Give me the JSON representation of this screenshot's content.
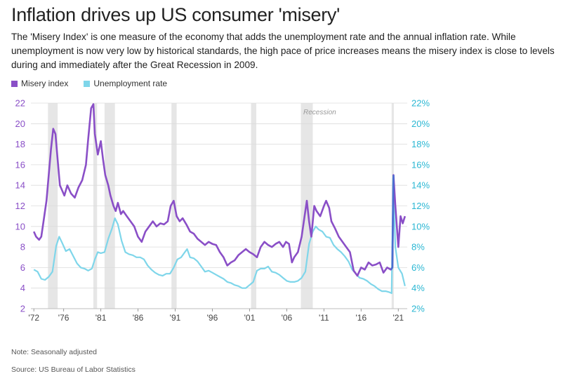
{
  "title": "Inflation drives up US consumer 'misery'",
  "subtitle": "The 'Misery Index' is one measure of the economy that adds the unemployment rate and the annual inflation rate. While unemployment is now very low by historical standards, the high pace of price increases means the misery index is close to levels during and immediately after the Great Recession in 2009.",
  "legend": {
    "misery_label": "Misery index",
    "unemployment_label": "Unemployment rate"
  },
  "note": "Note: Seasonally adjusted",
  "source": "Source: US Bureau of Labor Statistics",
  "colors": {
    "misery": "#8a4fc7",
    "unemployment": "#7fd6ea",
    "recession": "#e6e6e6",
    "grid": "#dcdcdc",
    "left_axis": "#8a4fc7",
    "right_axis": "#2bb7d3",
    "covid_spike": "#4a6fd0"
  },
  "chart_data": {
    "type": "line",
    "title": "Inflation drives up US consumer 'misery'",
    "xlabel": "",
    "ylabel": "",
    "xlim": [
      1971.6,
      2022.2
    ],
    "ylim_left": [
      2,
      22
    ],
    "ylim_right": [
      2,
      22
    ],
    "x_tick_labels": [
      "'72",
      "'76",
      "'81",
      "'86",
      "'91",
      "'96",
      "'01",
      "'06",
      "'11",
      "'16",
      "'21"
    ],
    "x_tick_years": [
      1972,
      1976,
      1981,
      1986,
      1991,
      1996,
      2001,
      2006,
      2011,
      2016,
      2021
    ],
    "y_ticks_left": [
      2,
      4,
      6,
      8,
      10,
      12,
      14,
      16,
      18,
      20,
      22
    ],
    "y_ticks_right_labels": [
      "2%",
      "4%",
      "6%",
      "8%",
      "10%",
      "12%",
      "14%",
      "16%",
      "18%",
      "20%",
      "22%"
    ],
    "y_ticks_right": [
      2,
      4,
      6,
      8,
      10,
      12,
      14,
      16,
      18,
      20,
      22
    ],
    "grid": true,
    "legend_position": "top-left",
    "recession_label": "Recession",
    "recessions": [
      [
        1973.9,
        1975.2
      ],
      [
        1980.0,
        1980.5
      ],
      [
        1981.5,
        1982.9
      ],
      [
        1990.5,
        1991.2
      ],
      [
        2001.2,
        2001.9
      ],
      [
        2007.9,
        2009.5
      ],
      [
        2020.1,
        2020.4
      ]
    ],
    "series": [
      {
        "name": "Misery index",
        "axis": "left",
        "x": [
          1972.0,
          1972.3,
          1972.7,
          1973.0,
          1973.3,
          1973.7,
          1974.0,
          1974.3,
          1974.6,
          1974.9,
          1975.2,
          1975.5,
          1975.8,
          1976.1,
          1976.5,
          1977.0,
          1977.5,
          1978.0,
          1978.5,
          1979.0,
          1979.3,
          1979.7,
          1980.0,
          1980.2,
          1980.6,
          1981.0,
          1981.3,
          1981.6,
          1982.0,
          1982.3,
          1982.7,
          1983.0,
          1983.3,
          1983.7,
          1984.0,
          1984.5,
          1985.0,
          1985.5,
          1986.0,
          1986.5,
          1987.0,
          1987.5,
          1988.0,
          1988.5,
          1989.0,
          1989.5,
          1990.0,
          1990.4,
          1990.8,
          1991.2,
          1991.6,
          1992.0,
          1992.5,
          1993.0,
          1993.5,
          1994.0,
          1994.5,
          1995.0,
          1995.5,
          1996.0,
          1996.5,
          1997.0,
          1997.5,
          1998.0,
          1998.5,
          1999.0,
          1999.5,
          2000.0,
          2000.5,
          2001.0,
          2001.5,
          2002.0,
          2002.5,
          2003.0,
          2003.5,
          2004.0,
          2004.5,
          2005.0,
          2005.5,
          2005.9,
          2006.3,
          2006.7,
          2007.0,
          2007.5,
          2008.0,
          2008.4,
          2008.7,
          2009.0,
          2009.3,
          2009.7,
          2010.0,
          2010.5,
          2011.0,
          2011.3,
          2011.7,
          2012.0,
          2012.5,
          2013.0,
          2013.5,
          2014.0,
          2014.5,
          2015.0,
          2015.5,
          2016.0,
          2016.5,
          2017.0,
          2017.5,
          2018.0,
          2018.5,
          2019.0,
          2019.5,
          2020.0,
          2020.2,
          2020.35,
          2020.6,
          2021.0,
          2021.3,
          2021.6,
          2021.9
        ],
        "values": [
          9.5,
          9.0,
          8.7,
          9.0,
          10.5,
          12.5,
          15.0,
          17.5,
          19.5,
          19.0,
          16.5,
          14.0,
          13.5,
          13.0,
          14.0,
          13.2,
          12.8,
          13.8,
          14.5,
          16.0,
          18.5,
          21.5,
          21.9,
          19.0,
          17.0,
          18.3,
          16.5,
          15.0,
          14.0,
          13.0,
          12.0,
          11.5,
          12.3,
          11.2,
          11.5,
          11.0,
          10.5,
          10.0,
          9.0,
          8.5,
          9.5,
          10.0,
          10.5,
          10.0,
          10.3,
          10.2,
          10.5,
          12.0,
          12.5,
          11.0,
          10.5,
          10.8,
          10.2,
          9.5,
          9.3,
          8.8,
          8.5,
          8.2,
          8.5,
          8.3,
          8.2,
          7.5,
          7.0,
          6.2,
          6.5,
          6.7,
          7.2,
          7.5,
          7.8,
          7.5,
          7.3,
          7.0,
          8.0,
          8.5,
          8.2,
          8.0,
          8.3,
          8.5,
          8.0,
          8.5,
          8.3,
          6.5,
          7.0,
          7.5,
          9.0,
          11.0,
          12.5,
          10.5,
          9.0,
          12.0,
          11.5,
          11.0,
          12.0,
          12.5,
          11.8,
          10.5,
          9.8,
          9.0,
          8.5,
          8.0,
          7.5,
          5.7,
          5.2,
          6.0,
          5.8,
          6.5,
          6.2,
          6.3,
          6.5,
          5.5,
          6.0,
          5.8,
          6.0,
          15.0,
          12.0,
          8.0,
          11.0,
          10.3,
          11.0
        ]
      },
      {
        "name": "Unemployment rate",
        "axis": "right",
        "x": [
          1972.0,
          1972.5,
          1973.0,
          1973.5,
          1974.0,
          1974.5,
          1975.0,
          1975.4,
          1975.8,
          1976.3,
          1976.8,
          1977.3,
          1977.8,
          1978.3,
          1978.8,
          1979.3,
          1979.8,
          1980.2,
          1980.6,
          1981.0,
          1981.5,
          1982.0,
          1982.5,
          1982.9,
          1983.3,
          1983.8,
          1984.3,
          1984.8,
          1985.3,
          1985.8,
          1986.3,
          1986.8,
          1987.3,
          1987.8,
          1988.3,
          1988.8,
          1989.3,
          1989.8,
          1990.3,
          1990.8,
          1991.3,
          1991.8,
          1992.3,
          1992.6,
          1993.0,
          1993.5,
          1994.0,
          1994.5,
          1995.0,
          1995.5,
          1996.0,
          1996.5,
          1997.0,
          1997.5,
          1998.0,
          1998.5,
          1999.0,
          1999.5,
          2000.0,
          2000.5,
          2001.0,
          2001.5,
          2002.0,
          2002.5,
          2003.0,
          2003.5,
          2004.0,
          2004.5,
          2005.0,
          2005.5,
          2006.0,
          2006.5,
          2007.0,
          2007.5,
          2008.0,
          2008.5,
          2009.0,
          2009.5,
          2009.9,
          2010.3,
          2010.8,
          2011.3,
          2011.8,
          2012.3,
          2012.8,
          2013.3,
          2013.8,
          2014.3,
          2014.8,
          2015.3,
          2015.8,
          2016.3,
          2016.8,
          2017.3,
          2017.8,
          2018.3,
          2018.8,
          2019.3,
          2019.8,
          2020.1,
          2020.3,
          2020.6,
          2021.0,
          2021.5,
          2021.9
        ],
        "values": [
          5.8,
          5.6,
          4.9,
          4.8,
          5.1,
          5.6,
          8.1,
          9.0,
          8.4,
          7.6,
          7.8,
          7.1,
          6.4,
          6.0,
          5.9,
          5.7,
          5.9,
          6.8,
          7.5,
          7.4,
          7.5,
          8.8,
          9.8,
          10.8,
          10.2,
          8.6,
          7.5,
          7.3,
          7.2,
          7.0,
          7.0,
          6.8,
          6.2,
          5.8,
          5.5,
          5.3,
          5.2,
          5.4,
          5.4,
          6.0,
          6.8,
          7.0,
          7.5,
          7.8,
          7.0,
          6.9,
          6.6,
          6.1,
          5.6,
          5.7,
          5.5,
          5.3,
          5.1,
          4.9,
          4.6,
          4.5,
          4.3,
          4.2,
          4.0,
          4.0,
          4.3,
          4.6,
          5.7,
          5.9,
          5.9,
          6.1,
          5.6,
          5.5,
          5.3,
          5.0,
          4.7,
          4.6,
          4.6,
          4.7,
          5.0,
          5.6,
          8.3,
          9.5,
          10.0,
          9.7,
          9.5,
          9.0,
          8.9,
          8.2,
          7.8,
          7.5,
          7.1,
          6.6,
          5.8,
          5.4,
          5.0,
          4.9,
          4.7,
          4.4,
          4.2,
          3.9,
          3.7,
          3.7,
          3.6,
          3.5,
          14.7,
          8.0,
          6.0,
          5.4,
          4.2
        ]
      }
    ]
  }
}
